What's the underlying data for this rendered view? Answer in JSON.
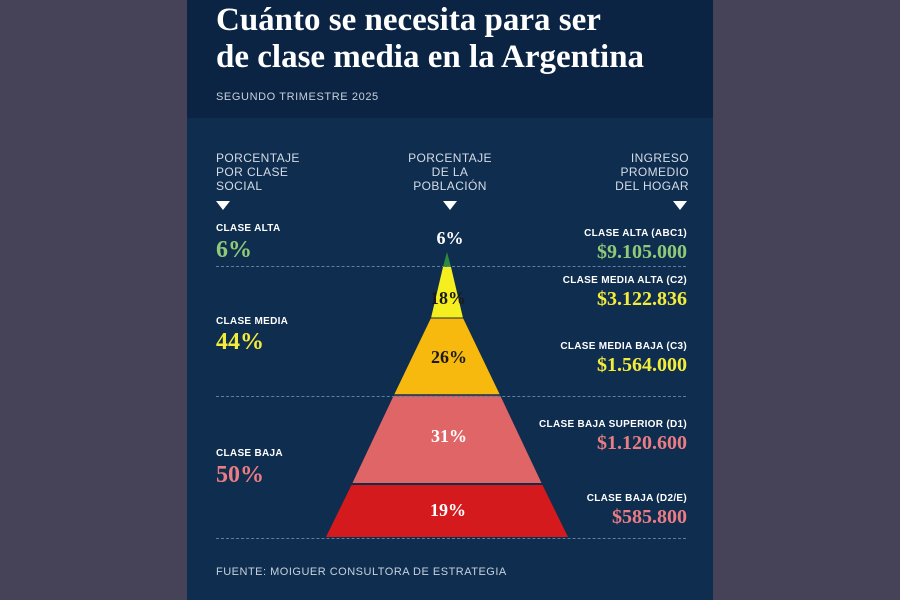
{
  "title_lines": [
    "Cuánto se necesita para ser",
    "de clase media en la Argentina"
  ],
  "subtitle": "SEGUNDO TRIMESTRE 2025",
  "columns": {
    "left": [
      "PORCENTAJE",
      "POR CLASE",
      "SOCIAL"
    ],
    "middle": [
      "PORCENTAJE",
      "DE LA",
      "POBLACIÓN"
    ],
    "right": [
      "INGRESO",
      "PROMEDIO",
      "DEL HOGAR"
    ]
  },
  "classes": [
    {
      "label": "CLASE ALTA",
      "value": "6%",
      "color": "#8fca79"
    },
    {
      "label": "CLASE MEDIA",
      "value": "44%",
      "color": "#f4ec3a"
    },
    {
      "label": "CLASE BAJA",
      "value": "50%",
      "color": "#ea7d84"
    }
  ],
  "segments": [
    {
      "label": "CLASE ALTA (ABC1)",
      "income": "$9.105.000",
      "pct": "6%",
      "share": 6,
      "color": "#2e8b3e",
      "income_color": "#8fca79"
    },
    {
      "label": "CLASE MEDIA ALTA (C2)",
      "income": "$3.122.836",
      "pct": "18%",
      "share": 18,
      "color": "#f6ef1f",
      "income_color": "#f4ec3a"
    },
    {
      "label": "CLASE MEDIA BAJA (C3)",
      "income": "$1.564.000",
      "pct": "26%",
      "share": 26,
      "color": "#f7b90d",
      "income_color": "#f4ec3a"
    },
    {
      "label": "CLASE BAJA SUPERIOR (D1)",
      "income": "$1.120.600",
      "pct": "31%",
      "share": 31,
      "color": "#e06567",
      "income_color": "#ea7d84"
    },
    {
      "label": "CLASE BAJA (D2/E)",
      "income": "$585.800",
      "pct": "19%",
      "share": 19,
      "color": "#d51a1d",
      "income_color": "#ea7d84"
    }
  ],
  "footer": "FUENTE: MOIGUER CONSULTORA DE ESTRATEGIA"
}
